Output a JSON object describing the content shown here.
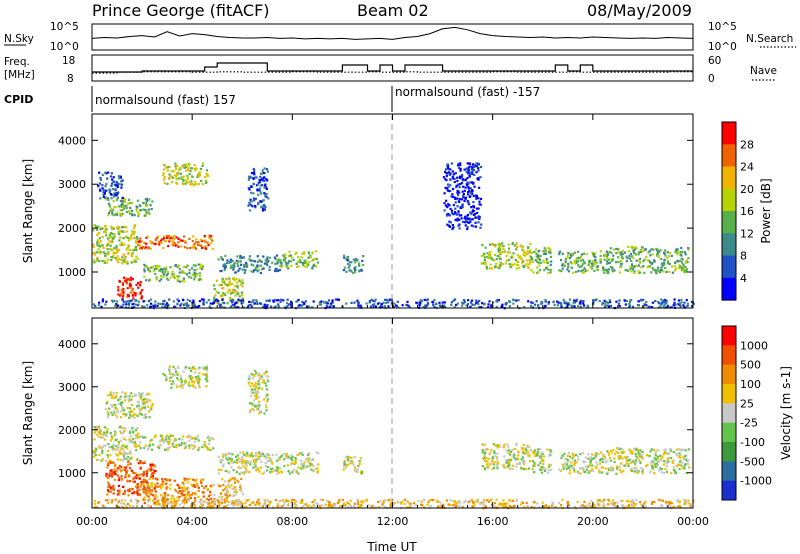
{
  "header": {
    "title": "Prince George (fitACF)",
    "beam": "Beam 02",
    "date": "08/May/2009"
  },
  "colors": {
    "power": [
      "#0000ff",
      "#1f52c4",
      "#3c8a8a",
      "#58b04a",
      "#b8d400",
      "#f0b400",
      "#f06400",
      "#ff0000"
    ],
    "velocity": [
      "#1b2fd1",
      "#2a6fa0",
      "#3c9a3c",
      "#63c34a",
      "#c8c8c8",
      "#f0c000",
      "#f08c00",
      "#f05000",
      "#ff0000"
    ]
  },
  "chart_data": [
    {
      "type": "line",
      "panel": "noise",
      "left_label": "N.Sky",
      "right_label": "N.Search",
      "left_ticks": [
        "10^5",
        "10^0"
      ],
      "right_ticks": [
        "10^5",
        "10^0"
      ],
      "x": [
        0,
        0.5,
        1,
        1.5,
        2,
        2.5,
        3,
        3.5,
        4,
        4.5,
        5,
        5.5,
        6,
        6.5,
        7,
        7.5,
        8,
        8.5,
        9,
        9.5,
        10,
        10.5,
        11,
        11.5,
        12,
        12.5,
        13,
        13.5,
        14,
        14.5,
        15,
        15.5,
        16,
        16.5,
        17,
        17.5,
        18,
        18.5,
        19,
        19.5,
        20,
        20.5,
        21,
        21.5,
        22,
        22.5,
        23,
        23.5,
        24
      ],
      "series": [
        {
          "values": [
            2.2,
            2.4,
            2.3,
            2.6,
            2.8,
            2.5,
            3.6,
            2.7,
            3.2,
            3.0,
            2.6,
            2.4,
            2.3,
            2.3,
            2.4,
            2.2,
            2.3,
            2.1,
            2.2,
            2.1,
            2.2,
            2.0,
            2.1,
            2.2,
            2.0,
            2.4,
            2.6,
            3.2,
            4.2,
            4.5,
            4.0,
            3.2,
            2.8,
            2.6,
            2.5,
            2.4,
            2.5,
            2.3,
            2.4,
            2.3,
            2.5,
            2.4,
            2.3,
            2.2,
            2.3,
            2.2,
            2.4,
            2.3,
            2.2
          ]
        }
      ]
    },
    {
      "type": "line",
      "panel": "frequency",
      "left_label": "Freq.",
      "left_unit": "[MHz]",
      "right_label": "Nave",
      "left_ticks": [
        18,
        8
      ],
      "right_ticks": [
        60,
        0
      ],
      "x": [
        0,
        1,
        2,
        3,
        4,
        4.5,
        5,
        6,
        7,
        7.5,
        8,
        9,
        10,
        10.5,
        11,
        11.5,
        12,
        12.5,
        13,
        14,
        15,
        16,
        17,
        18,
        18.5,
        19,
        19.5,
        20,
        21,
        22,
        23,
        24
      ],
      "series": [
        {
          "name": "Freq",
          "values": [
            10.5,
            10.5,
            11,
            11,
            11,
            13,
            15,
            15,
            11,
            11,
            11,
            11,
            14,
            14,
            11,
            14,
            11,
            14,
            14,
            11,
            11,
            11,
            11,
            11,
            14,
            11,
            14,
            11,
            11,
            11,
            11,
            11
          ]
        },
        {
          "name": "Nave",
          "values": [
            20,
            22,
            23,
            23,
            22,
            22,
            23,
            22,
            22,
            22,
            23,
            22,
            22,
            22,
            23,
            22,
            22,
            23,
            22,
            22,
            22,
            23,
            22,
            22,
            22,
            23,
            22,
            22,
            22,
            22,
            23,
            22
          ]
        }
      ]
    },
    {
      "type": "table",
      "panel": "cpid",
      "label": "CPID",
      "entries": [
        {
          "start": 0,
          "name": "normalsound (fast) 157"
        },
        {
          "start": 12,
          "name": "normalsound (fast) -157"
        }
      ]
    },
    {
      "type": "heatmap",
      "panel": "power",
      "ylabel": "Slant Range [km]",
      "yticks": [
        1000,
        2000,
        3000,
        4000
      ],
      "ylim": [
        180,
        4600
      ],
      "colorbar_label": "Power [dB]",
      "colorbar_ticks": [
        "28",
        "24",
        "20",
        "16",
        "12",
        "8",
        "4"
      ],
      "clim": [
        0,
        30
      ],
      "regions": [
        {
          "t0": 0.0,
          "t1": 1.8,
          "r0": 1200,
          "r1": 2100,
          "lvl": 4
        },
        {
          "t0": 1.0,
          "t1": 2.0,
          "r0": 400,
          "r1": 900,
          "lvl": 7
        },
        {
          "t0": 1.8,
          "t1": 4.8,
          "r0": 1550,
          "r1": 1850,
          "lvl": 6
        },
        {
          "t0": 0.5,
          "t1": 2.4,
          "r0": 2300,
          "r1": 2700,
          "lvl": 3
        },
        {
          "t0": 2.8,
          "t1": 4.6,
          "r0": 3000,
          "r1": 3500,
          "lvl": 4
        },
        {
          "t0": 0.2,
          "t1": 1.2,
          "r0": 2700,
          "r1": 3300,
          "lvl": 1
        },
        {
          "t0": 2.0,
          "t1": 4.4,
          "r0": 800,
          "r1": 1200,
          "lvl": 3
        },
        {
          "t0": 5.0,
          "t1": 7.5,
          "r0": 1000,
          "r1": 1400,
          "lvl": 2
        },
        {
          "t0": 7.5,
          "t1": 9.0,
          "r0": 1100,
          "r1": 1500,
          "lvl": 3
        },
        {
          "t0": 4.8,
          "t1": 6.0,
          "r0": 300,
          "r1": 900,
          "lvl": 4
        },
        {
          "t0": 6.2,
          "t1": 7.0,
          "r0": 2400,
          "r1": 3400,
          "lvl": 1
        },
        {
          "t0": 10.0,
          "t1": 10.8,
          "r0": 1000,
          "r1": 1400,
          "lvl": 2
        },
        {
          "t0": 14.0,
          "t1": 15.5,
          "r0": 2000,
          "r1": 3500,
          "lvl": 0
        },
        {
          "t0": 15.5,
          "t1": 17.5,
          "r0": 1100,
          "r1": 1700,
          "lvl": 4
        },
        {
          "t0": 17.5,
          "t1": 18.3,
          "r0": 1000,
          "r1": 1600,
          "lvl": 3
        },
        {
          "t0": 18.6,
          "t1": 20.5,
          "r0": 1000,
          "r1": 1500,
          "lvl": 3
        },
        {
          "t0": 20.5,
          "t1": 23.8,
          "r0": 1000,
          "r1": 1600,
          "lvl": 3
        },
        {
          "t0": 0.0,
          "t1": 24.0,
          "r0": 200,
          "r1": 400,
          "lvl": 1
        }
      ]
    },
    {
      "type": "heatmap",
      "panel": "velocity",
      "ylabel": "Slant Range [km]",
      "yticks": [
        1000,
        2000,
        3000,
        4000
      ],
      "ylim": [
        180,
        4600
      ],
      "colorbar_label": "Velocity [m s-1]",
      "colorbar_ticks": [
        "1000",
        "500",
        "100",
        "25",
        "-25",
        "-100",
        "-500",
        "-1000"
      ],
      "clim": [
        -1200,
        1200
      ],
      "regions": [
        {
          "t0": 0.0,
          "t1": 1.8,
          "r0": 1300,
          "r1": 2100,
          "lvl": 4
        },
        {
          "t0": 1.8,
          "t1": 4.8,
          "r0": 1550,
          "r1": 1900,
          "lvl": 4
        },
        {
          "t0": 0.5,
          "t1": 2.4,
          "r0": 2300,
          "r1": 2900,
          "lvl": 4
        },
        {
          "t0": 2.8,
          "t1": 4.6,
          "r0": 3000,
          "r1": 3500,
          "lvl": 4
        },
        {
          "t0": 0.5,
          "t1": 2.5,
          "r0": 500,
          "r1": 1300,
          "lvl": 7
        },
        {
          "t0": 2.0,
          "t1": 4.8,
          "r0": 300,
          "r1": 900,
          "lvl": 6
        },
        {
          "t0": 5.0,
          "t1": 9.0,
          "r0": 1000,
          "r1": 1500,
          "lvl": 4
        },
        {
          "t0": 4.8,
          "t1": 6.0,
          "r0": 300,
          "r1": 900,
          "lvl": 5
        },
        {
          "t0": 6.2,
          "t1": 7.0,
          "r0": 2400,
          "r1": 3400,
          "lvl": 4
        },
        {
          "t0": 10.0,
          "t1": 10.8,
          "r0": 1000,
          "r1": 1400,
          "lvl": 4
        },
        {
          "t0": 15.5,
          "t1": 17.5,
          "r0": 1100,
          "r1": 1700,
          "lvl": 4
        },
        {
          "t0": 17.5,
          "t1": 18.3,
          "r0": 1000,
          "r1": 1600,
          "lvl": 4
        },
        {
          "t0": 18.6,
          "t1": 20.5,
          "r0": 1000,
          "r1": 1500,
          "lvl": 4
        },
        {
          "t0": 20.5,
          "t1": 23.8,
          "r0": 1000,
          "r1": 1600,
          "lvl": 4
        },
        {
          "t0": 0.0,
          "t1": 24.0,
          "r0": 200,
          "r1": 400,
          "lvl": 5
        }
      ]
    }
  ],
  "xaxis": {
    "label": "Time UT",
    "ticks": [
      "00:00",
      "04:00",
      "08:00",
      "12:00",
      "16:00",
      "20:00",
      "00:00"
    ],
    "range": [
      0,
      24
    ]
  }
}
